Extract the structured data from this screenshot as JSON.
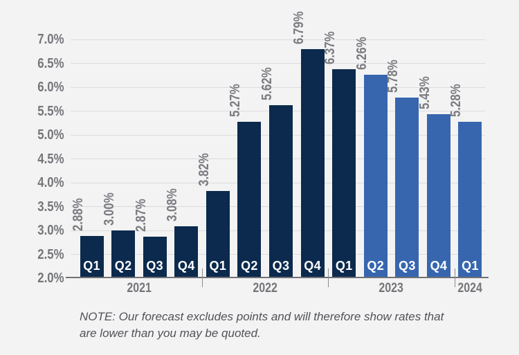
{
  "chart_data": {
    "type": "bar",
    "title": "",
    "xlabel": "",
    "ylabel": "",
    "ylim": [
      2.0,
      7.0
    ],
    "ytick_step": 0.5,
    "grid": true,
    "legend": "none",
    "y_ticks": [
      "2.0%",
      "2.5%",
      "3.0%",
      "3.5%",
      "4.0%",
      "4.5%",
      "5.0%",
      "5.5%",
      "6.0%",
      "6.5%",
      "7.0%"
    ],
    "categories": [
      "Q1",
      "Q2",
      "Q3",
      "Q4",
      "Q1",
      "Q2",
      "Q3",
      "Q4",
      "Q1",
      "Q2",
      "Q3",
      "Q4",
      "Q1"
    ],
    "values": [
      2.88,
      3.0,
      2.87,
      3.08,
      3.82,
      5.27,
      5.62,
      6.79,
      6.37,
      6.26,
      5.78,
      5.43,
      5.28
    ],
    "bar_labels": [
      "2.88%",
      "3.00%",
      "2.87%",
      "3.08%",
      "3.82%",
      "5.27%",
      "5.62%",
      "6.79%",
      "6.37%",
      "6.26%",
      "5.78%",
      "5.43%",
      "5.28%"
    ],
    "forecast": [
      false,
      false,
      false,
      false,
      false,
      false,
      false,
      false,
      false,
      true,
      true,
      true,
      true
    ],
    "year_groups": [
      {
        "label": "2021",
        "count": 4
      },
      {
        "label": "2022",
        "count": 4
      },
      {
        "label": "2023",
        "count": 4
      },
      {
        "label": "2024",
        "count": 1
      }
    ],
    "colors": {
      "actual": "#0b2a4d",
      "forecast": "#3766ae",
      "label_gray": "#7b7c80",
      "axis_gray": "#707175",
      "gridline": "#dcdcde",
      "background": "#f3f3f4"
    }
  },
  "note": "NOTE: Our forecast excludes points and will therefore show rates that are lower than you may be quoted."
}
